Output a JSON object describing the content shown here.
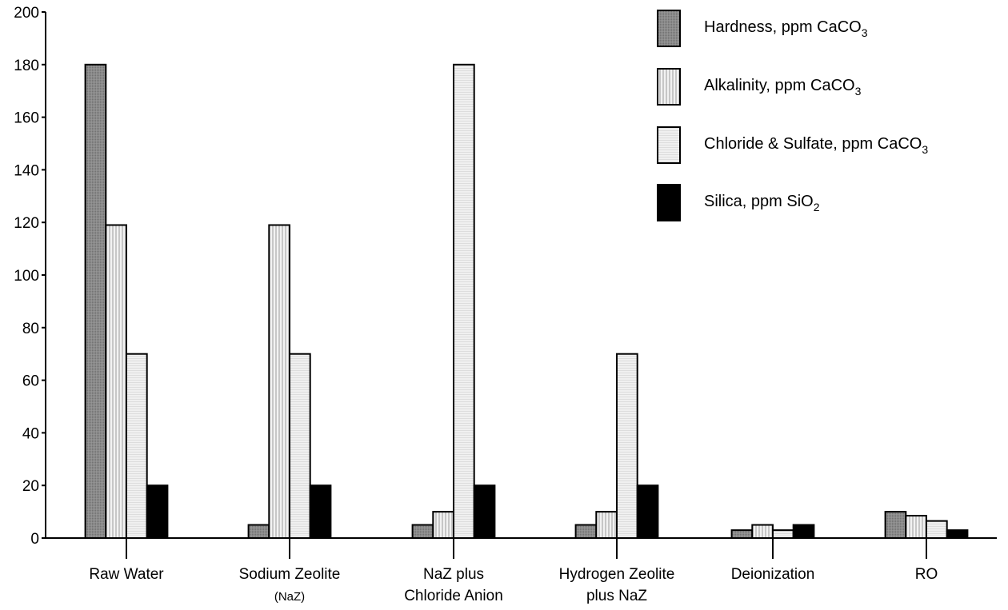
{
  "chart_data": {
    "type": "bar",
    "categories": [
      {
        "lines": [
          "Raw Water"
        ]
      },
      {
        "lines": [
          "Sodium Zeolite",
          "(NaZ)"
        ]
      },
      {
        "lines": [
          "NaZ plus",
          "Chloride Anion"
        ]
      },
      {
        "lines": [
          "Hydrogen Zeolite",
          "plus NaZ"
        ]
      },
      {
        "lines": [
          "Deionization"
        ]
      },
      {
        "lines": [
          "RO"
        ]
      }
    ],
    "series": [
      {
        "name": "Hardness, ppm CaCO",
        "subscript": "3",
        "pattern": "hardness",
        "values": [
          180,
          5,
          5,
          5,
          3,
          10
        ]
      },
      {
        "name": "Alkalinity, ppm CaCO",
        "subscript": "3",
        "pattern": "alkalinity",
        "values": [
          119,
          119,
          10,
          10,
          5,
          8.5
        ]
      },
      {
        "name": "Chloride & Sulfate, ppm CaCO",
        "subscript": "3",
        "pattern": "chloride",
        "values": [
          70,
          70,
          180,
          70,
          3,
          6.5
        ]
      },
      {
        "name": "Silica, ppm SiO",
        "subscript": "2",
        "pattern": "silica",
        "values": [
          20,
          20,
          20,
          20,
          5,
          3
        ]
      }
    ],
    "ylim": [
      0,
      200
    ],
    "yticks": [
      0,
      20,
      40,
      60,
      80,
      100,
      120,
      140,
      160,
      180,
      200
    ],
    "legend_position": "top-right",
    "grid": false,
    "colors": {
      "hardness": "#888888",
      "alkalinity": "#dddddd",
      "chloride": "#eeeeee",
      "silica": "#000000"
    }
  }
}
